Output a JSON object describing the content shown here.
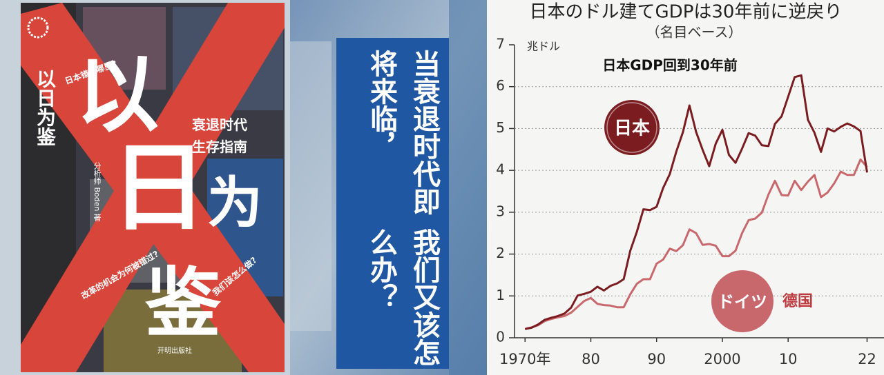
{
  "book": {
    "title_chars": [
      "以",
      "日",
      "为",
      "鉴"
    ],
    "subtitle": [
      "衰退时代",
      "生存指南"
    ],
    "callouts": [
      "日本错在哪里?",
      "我们该怎么做?",
      "改革的机会为何被错过?"
    ],
    "author": "分析师 Boden 著",
    "publisher": "开明出版社"
  },
  "banner": {
    "lines": [
      "当衰退时代即将来临，",
      "我们又该怎么办？"
    ]
  },
  "chart_data": {
    "type": "line",
    "title": "日本のドル建てGDPは30年前に逆戻り",
    "subtitle": "（名目ベース）",
    "y_unit": "兆ドル",
    "annotation": "日本GDP回到30年前",
    "series_note": "德国",
    "x": [
      1970,
      1971,
      1972,
      1973,
      1974,
      1975,
      1976,
      1977,
      1978,
      1979,
      1980,
      1981,
      1982,
      1983,
      1984,
      1985,
      1986,
      1987,
      1988,
      1989,
      1990,
      1991,
      1992,
      1993,
      1994,
      1995,
      1996,
      1997,
      1998,
      1999,
      2000,
      2001,
      2002,
      2003,
      2004,
      2005,
      2006,
      2007,
      2008,
      2009,
      2010,
      2011,
      2012,
      2013,
      2014,
      2015,
      2016,
      2017,
      2018,
      2019,
      2020,
      2021,
      2022
    ],
    "series": [
      {
        "name": "日本",
        "color": "#7a1c20",
        "values": [
          0.21,
          0.24,
          0.32,
          0.43,
          0.48,
          0.52,
          0.58,
          0.72,
          1.01,
          1.05,
          1.1,
          1.22,
          1.13,
          1.24,
          1.3,
          1.4,
          2.08,
          2.53,
          3.07,
          3.05,
          3.13,
          3.58,
          3.91,
          4.45,
          4.91,
          5.55,
          4.92,
          4.49,
          4.1,
          4.64,
          4.97,
          4.37,
          4.18,
          4.52,
          4.89,
          4.83,
          4.6,
          4.58,
          5.11,
          5.29,
          5.76,
          6.23,
          6.27,
          5.21,
          4.9,
          4.44,
          5.0,
          4.93,
          5.04,
          5.12,
          5.05,
          4.94,
          3.95
        ]
      },
      {
        "name": "ドイツ",
        "color": "#c8686c",
        "values": [
          0.21,
          0.25,
          0.3,
          0.4,
          0.45,
          0.49,
          0.52,
          0.6,
          0.74,
          0.88,
          0.95,
          0.81,
          0.78,
          0.77,
          0.73,
          0.73,
          1.04,
          1.29,
          1.4,
          1.4,
          1.77,
          1.87,
          2.13,
          2.07,
          2.21,
          2.59,
          2.5,
          2.22,
          2.24,
          2.2,
          1.95,
          1.95,
          2.08,
          2.5,
          2.81,
          2.85,
          2.99,
          3.42,
          3.75,
          3.41,
          3.4,
          3.75,
          3.53,
          3.73,
          3.89,
          3.36,
          3.47,
          3.69,
          3.97,
          3.89,
          3.89,
          4.26,
          4.08
        ]
      }
    ],
    "xlim": [
      1968.4,
      2023
    ],
    "xticks": [
      {
        "value": 1970,
        "label": "1970年"
      },
      {
        "value": 1980,
        "label": "80"
      },
      {
        "value": 1990,
        "label": "90"
      },
      2000,
      {
        "value": 2010,
        "label": "10"
      },
      {
        "value": 2022,
        "label": "22"
      }
    ],
    "ylim": [
      0,
      7
    ],
    "yticks": [
      0,
      1,
      2,
      3,
      4,
      5,
      6,
      7
    ],
    "grid": true
  }
}
